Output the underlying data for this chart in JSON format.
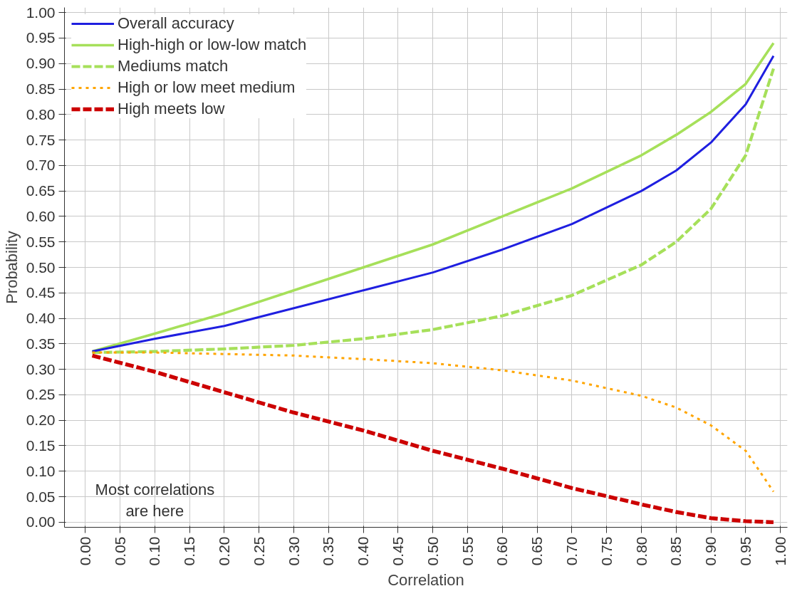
{
  "chart_data": {
    "type": "line",
    "xlabel": "Correlation",
    "ylabel": "Probability",
    "x": [
      0.01,
      0.1,
      0.2,
      0.3,
      0.4,
      0.5,
      0.6,
      0.7,
      0.8,
      0.85,
      0.9,
      0.95,
      0.99
    ],
    "series": [
      {
        "name": "Overall accuracy",
        "color": "#1f1fe0",
        "line_style": "solid",
        "values": [
          0.335,
          0.36,
          0.385,
          0.42,
          0.455,
          0.49,
          0.535,
          0.585,
          0.65,
          0.69,
          0.745,
          0.82,
          0.915
        ]
      },
      {
        "name": "High-high or low-low match",
        "color": "#a6e05a",
        "line_style": "solid",
        "values": [
          0.335,
          0.37,
          0.41,
          0.455,
          0.5,
          0.545,
          0.6,
          0.655,
          0.72,
          0.76,
          0.805,
          0.86,
          0.94
        ]
      },
      {
        "name": "Mediums match",
        "color": "#a6e05a",
        "line_style": "dashed",
        "values": [
          0.333,
          0.335,
          0.34,
          0.347,
          0.36,
          0.378,
          0.405,
          0.445,
          0.505,
          0.55,
          0.615,
          0.72,
          0.89
        ]
      },
      {
        "name": "High or low meet medium",
        "color": "#ffa500",
        "line_style": "dotted",
        "values": [
          0.333,
          0.333,
          0.33,
          0.327,
          0.32,
          0.312,
          0.298,
          0.278,
          0.248,
          0.225,
          0.19,
          0.14,
          0.06
        ]
      },
      {
        "name": "High meets low",
        "color": "#cc0000",
        "line_style": "dashed",
        "values": [
          0.327,
          0.295,
          0.255,
          0.215,
          0.18,
          0.14,
          0.105,
          0.067,
          0.035,
          0.02,
          0.008,
          0.002,
          0.0
        ]
      }
    ],
    "xlim": [
      -0.03,
      1.01
    ],
    "ylim": [
      -0.01,
      1.01
    ],
    "xticks": [
      {
        "value": 0,
        "label": "0.00"
      },
      {
        "value": 0.05,
        "label": "0.05"
      },
      {
        "value": 0.1,
        "label": "0.10"
      },
      {
        "value": 0.15,
        "label": "0.15"
      },
      {
        "value": 0.2,
        "label": "0.20"
      },
      {
        "value": 0.25,
        "label": "0.25"
      },
      {
        "value": 0.3,
        "label": "0.30"
      },
      {
        "value": 0.35,
        "label": "0.35"
      },
      {
        "value": 0.4,
        "label": "0.40"
      },
      {
        "value": 0.45,
        "label": "0.45"
      },
      {
        "value": 0.5,
        "label": "0.50"
      },
      {
        "value": 0.55,
        "label": "0.55"
      },
      {
        "value": 0.6,
        "label": "0.60"
      },
      {
        "value": 0.65,
        "label": "0.65"
      },
      {
        "value": 0.7,
        "label": "0.70"
      },
      {
        "value": 0.75,
        "label": "0.75"
      },
      {
        "value": 0.8,
        "label": "0.80"
      },
      {
        "value": 0.85,
        "label": "0.85"
      },
      {
        "value": 0.9,
        "label": "0.90"
      },
      {
        "value": 0.95,
        "label": "0.95"
      },
      {
        "value": 1,
        "label": "1.00"
      }
    ],
    "yticks": [
      {
        "value": 0,
        "label": "0.00"
      },
      {
        "value": 0.05,
        "label": "0.05"
      },
      {
        "value": 0.1,
        "label": "0.10"
      },
      {
        "value": 0.15,
        "label": "0.15"
      },
      {
        "value": 0.2,
        "label": "0.20"
      },
      {
        "value": 0.25,
        "label": "0.25"
      },
      {
        "value": 0.3,
        "label": "0.30"
      },
      {
        "value": 0.35,
        "label": "0.35"
      },
      {
        "value": 0.4,
        "label": "0.40"
      },
      {
        "value": 0.45,
        "label": "0.45"
      },
      {
        "value": 0.5,
        "label": "0.50"
      },
      {
        "value": 0.55,
        "label": "0.55"
      },
      {
        "value": 0.6,
        "label": "0.60"
      },
      {
        "value": 0.65,
        "label": "0.65"
      },
      {
        "value": 0.7,
        "label": "0.70"
      },
      {
        "value": 0.75,
        "label": "0.75"
      },
      {
        "value": 0.8,
        "label": "0.80"
      },
      {
        "value": 0.85,
        "label": "0.85"
      },
      {
        "value": 0.9,
        "label": "0.90"
      },
      {
        "value": 0.95,
        "label": "0.95"
      },
      {
        "value": 1,
        "label": "1.00"
      }
    ],
    "grid": true,
    "legend": "top left",
    "marker": "none",
    "annotations": [
      "Most correlations\nare here"
    ]
  }
}
